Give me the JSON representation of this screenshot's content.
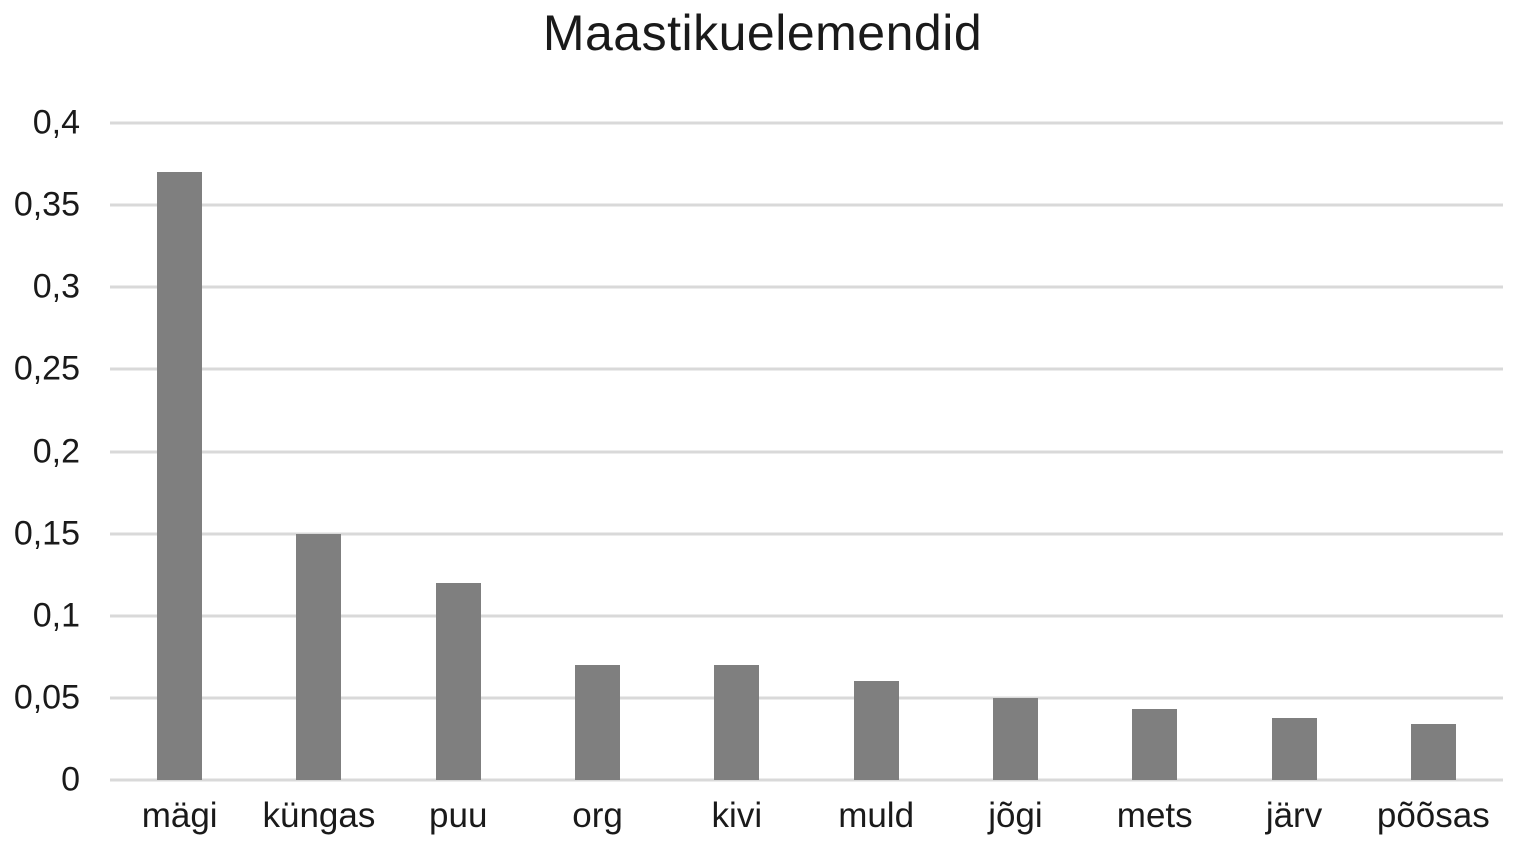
{
  "title": "Maastikuelemendid",
  "colors": {
    "background": "#ffffff",
    "bar": "#7f7f7f",
    "gridline": "#d9d9d9",
    "text": "#1a1a1a"
  },
  "chart_data": {
    "type": "bar",
    "title": "Maastikuelemendid",
    "categories": [
      "mägi",
      "küngas",
      "puu",
      "org",
      "kivi",
      "muld",
      "jõgi",
      "mets",
      "järv",
      "põõsas"
    ],
    "values": [
      0.37,
      0.15,
      0.12,
      0.07,
      0.07,
      0.06,
      0.05,
      0.043,
      0.038,
      0.034
    ],
    "xlabel": "",
    "ylabel": "",
    "ylim": [
      0,
      0.4
    ],
    "ytick_interval": 0.05,
    "ytick_labels": [
      "0",
      "0,05",
      "0,1",
      "0,15",
      "0,2",
      "0,25",
      "0,3",
      "0,35",
      "0,4"
    ],
    "decimal_separator": ",",
    "grid": true,
    "legend_position": "none",
    "bar_color": "#7f7f7f"
  }
}
